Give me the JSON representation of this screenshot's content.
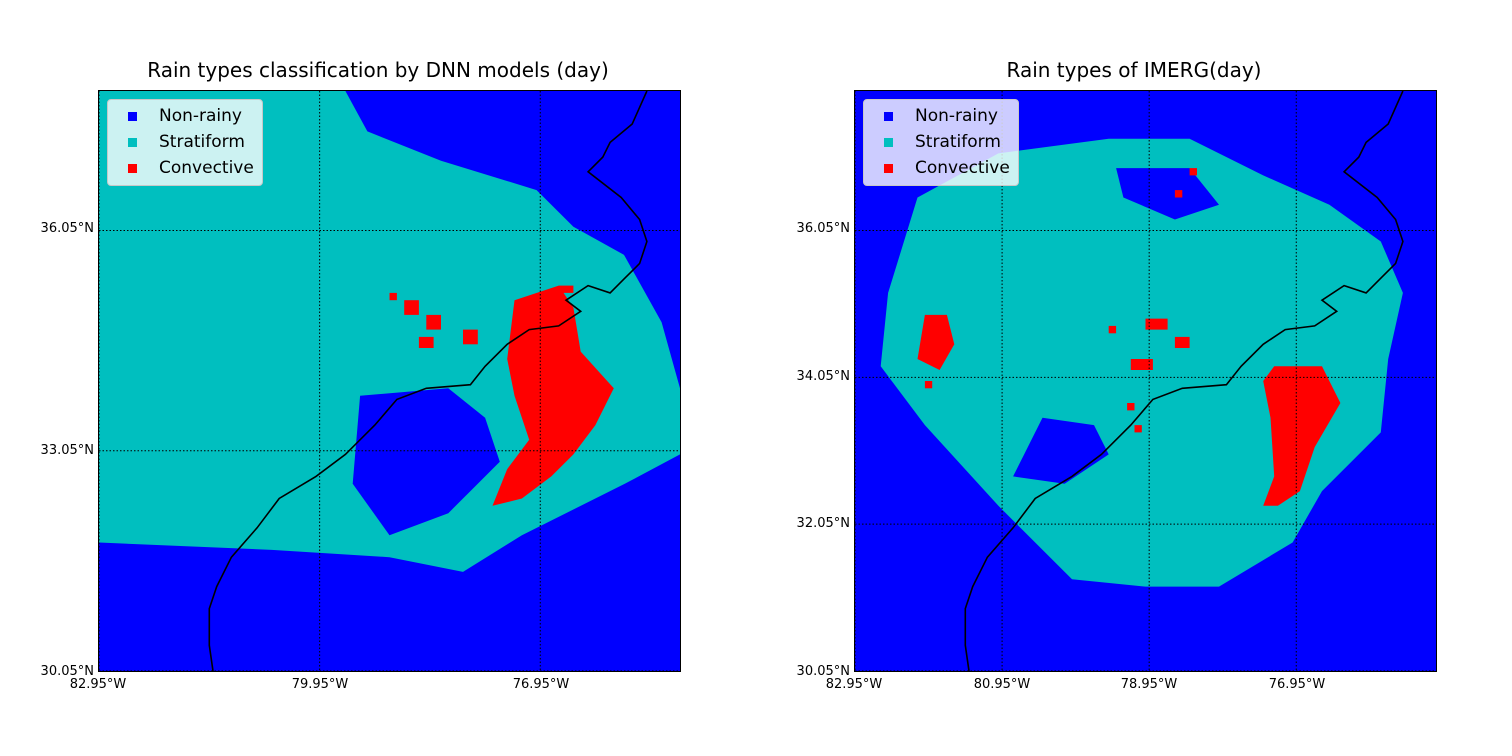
{
  "colors": {
    "non_rainy": "#0000ff",
    "stratiform": "#00bfbf",
    "convective": "#ff0000"
  },
  "legend": [
    "Non-rainy",
    "Stratiform",
    "Convective"
  ],
  "panels": [
    {
      "title": "Rain types classification by DNN models (day)",
      "xticks": [
        "82.95°W",
        "79.95°W",
        "76.95°W"
      ],
      "yticks": [
        "36.05°N",
        "33.05°N",
        "30.05°N"
      ]
    },
    {
      "title": "Rain types of IMERG(day)",
      "xticks": [
        "82.95°W",
        "80.95°W",
        "78.95°W",
        "76.95°W"
      ],
      "yticks": [
        "36.05°N",
        "34.05°N",
        "32.05°N",
        "30.05°N"
      ]
    }
  ],
  "chart_data": [
    {
      "type": "heatmap",
      "title": "Rain types classification by DNN models (day)",
      "categories": [
        "Non-rainy",
        "Stratiform",
        "Convective"
      ],
      "xlim": [
        -82.95,
        -75.05
      ],
      "ylim": [
        30.05,
        37.95
      ],
      "x_ticks": [
        -82.95,
        -79.95,
        -76.95
      ],
      "y_ticks": [
        30.05,
        33.05,
        36.05
      ],
      "stratiform_region": [
        [
          -82.95,
          37.95
        ],
        [
          -79.4,
          37.95
        ],
        [
          -78.3,
          37.5
        ],
        [
          -77.6,
          37.0
        ],
        [
          -76.4,
          36.7
        ],
        [
          -75.8,
          35.7
        ],
        [
          -75.3,
          34.8
        ],
        [
          -75.05,
          33.9
        ],
        [
          -75.05,
          33.0
        ],
        [
          -75.8,
          32.6
        ],
        [
          -77.2,
          31.9
        ],
        [
          -78.0,
          31.4
        ],
        [
          -79.0,
          31.6
        ],
        [
          -80.6,
          31.7
        ],
        [
          -82.95,
          31.8
        ]
      ],
      "non_rainy_holes": [
        [
          [
            -79.4,
            33.8
          ],
          [
            -78.2,
            33.9
          ],
          [
            -77.7,
            33.5
          ],
          [
            -77.5,
            32.9
          ],
          [
            -78.2,
            32.2
          ],
          [
            -79.0,
            31.9
          ],
          [
            -79.5,
            32.6
          ]
        ],
        [
          [
            -79.6,
            37.95
          ],
          [
            -75.05,
            37.95
          ],
          [
            -75.05,
            35.1
          ],
          [
            -75.6,
            35.6
          ],
          [
            -76.5,
            36.1
          ],
          [
            -77.0,
            36.6
          ],
          [
            -78.3,
            37.0
          ],
          [
            -79.3,
            37.4
          ]
        ]
      ],
      "convective_regions": [
        [
          [
            -77.3,
            35.1
          ],
          [
            -76.7,
            35.3
          ],
          [
            -76.5,
            35.0
          ],
          [
            -76.4,
            34.4
          ],
          [
            -75.95,
            33.9
          ],
          [
            -76.2,
            33.4
          ],
          [
            -76.5,
            33.0
          ],
          [
            -76.8,
            32.7
          ],
          [
            -77.2,
            32.4
          ],
          [
            -77.6,
            32.3
          ],
          [
            -77.4,
            32.8
          ],
          [
            -77.1,
            33.2
          ],
          [
            -77.3,
            33.8
          ],
          [
            -77.4,
            34.3
          ]
        ],
        [
          [
            -78.0,
            34.7
          ],
          [
            -77.8,
            34.7
          ],
          [
            -77.8,
            34.5
          ],
          [
            -78.0,
            34.5
          ]
        ],
        [
          [
            -78.5,
            34.9
          ],
          [
            -78.3,
            34.9
          ],
          [
            -78.3,
            34.7
          ],
          [
            -78.5,
            34.7
          ]
        ],
        [
          [
            -78.6,
            34.6
          ],
          [
            -78.4,
            34.6
          ],
          [
            -78.4,
            34.45
          ],
          [
            -78.6,
            34.45
          ]
        ],
        [
          [
            -79.0,
            35.2
          ],
          [
            -78.9,
            35.2
          ],
          [
            -78.9,
            35.1
          ],
          [
            -79.0,
            35.1
          ]
        ],
        [
          [
            -78.8,
            35.1
          ],
          [
            -78.6,
            35.1
          ],
          [
            -78.6,
            34.9
          ],
          [
            -78.8,
            34.9
          ]
        ],
        [
          [
            -76.7,
            35.3
          ],
          [
            -76.5,
            35.3
          ],
          [
            -76.5,
            35.2
          ],
          [
            -76.7,
            35.2
          ]
        ]
      ]
    },
    {
      "type": "heatmap",
      "title": "Rain types of IMERG(day)",
      "categories": [
        "Non-rainy",
        "Stratiform",
        "Convective"
      ],
      "xlim": [
        -82.95,
        -75.05
      ],
      "ylim": [
        30.05,
        37.95
      ],
      "x_ticks": [
        -82.95,
        -80.95,
        -78.95,
        -76.95
      ],
      "y_ticks": [
        30.05,
        32.05,
        34.05,
        36.05
      ],
      "stratiform_region": [
        [
          -82.1,
          36.5
        ],
        [
          -81.0,
          37.1
        ],
        [
          -79.5,
          37.3
        ],
        [
          -78.4,
          37.3
        ],
        [
          -77.4,
          36.8
        ],
        [
          -76.5,
          36.4
        ],
        [
          -75.8,
          35.9
        ],
        [
          -75.5,
          35.2
        ],
        [
          -75.7,
          34.3
        ],
        [
          -75.8,
          33.3
        ],
        [
          -76.6,
          32.5
        ],
        [
          -77.0,
          31.8
        ],
        [
          -78.0,
          31.2
        ],
        [
          -79.0,
          31.2
        ],
        [
          -80.0,
          31.3
        ],
        [
          -81.0,
          32.3
        ],
        [
          -82.0,
          33.4
        ],
        [
          -82.6,
          34.2
        ],
        [
          -82.5,
          35.2
        ]
      ],
      "non_rainy_holes": [
        [
          [
            -80.4,
            33.5
          ],
          [
            -79.7,
            33.4
          ],
          [
            -79.5,
            33.0
          ],
          [
            -80.1,
            32.6
          ],
          [
            -80.8,
            32.7
          ]
        ],
        [
          [
            -79.4,
            36.9
          ],
          [
            -78.4,
            36.9
          ],
          [
            -78.0,
            36.4
          ],
          [
            -78.6,
            36.2
          ],
          [
            -79.3,
            36.5
          ]
        ]
      ],
      "convective_regions": [
        [
          [
            -77.25,
            34.2
          ],
          [
            -76.6,
            34.2
          ],
          [
            -76.35,
            33.7
          ],
          [
            -76.7,
            33.1
          ],
          [
            -76.9,
            32.5
          ],
          [
            -77.2,
            32.3
          ],
          [
            -77.4,
            32.3
          ],
          [
            -77.25,
            32.7
          ],
          [
            -77.3,
            33.5
          ],
          [
            -77.4,
            34.0
          ]
        ],
        [
          [
            -82.0,
            34.9
          ],
          [
            -81.7,
            34.9
          ],
          [
            -81.6,
            34.5
          ],
          [
            -81.8,
            34.15
          ],
          [
            -82.1,
            34.3
          ]
        ],
        [
          [
            -79.0,
            34.85
          ],
          [
            -78.7,
            34.85
          ],
          [
            -78.7,
            34.7
          ],
          [
            -79.0,
            34.7
          ]
        ],
        [
          [
            -79.2,
            34.3
          ],
          [
            -78.9,
            34.3
          ],
          [
            -78.9,
            34.15
          ],
          [
            -79.2,
            34.15
          ]
        ],
        [
          [
            -78.6,
            34.6
          ],
          [
            -78.4,
            34.6
          ],
          [
            -78.4,
            34.45
          ],
          [
            -78.6,
            34.45
          ]
        ],
        [
          [
            -79.5,
            34.75
          ],
          [
            -79.4,
            34.75
          ],
          [
            -79.4,
            34.65
          ],
          [
            -79.5,
            34.65
          ]
        ],
        [
          [
            -78.4,
            36.9
          ],
          [
            -78.3,
            36.9
          ],
          [
            -78.3,
            36.8
          ],
          [
            -78.4,
            36.8
          ]
        ],
        [
          [
            -78.6,
            36.6
          ],
          [
            -78.5,
            36.6
          ],
          [
            -78.5,
            36.5
          ],
          [
            -78.6,
            36.5
          ]
        ],
        [
          [
            -79.25,
            33.7
          ],
          [
            -79.15,
            33.7
          ],
          [
            -79.15,
            33.6
          ],
          [
            -79.25,
            33.6
          ]
        ],
        [
          [
            -79.15,
            33.4
          ],
          [
            -79.05,
            33.4
          ],
          [
            -79.05,
            33.3
          ],
          [
            -79.15,
            33.3
          ]
        ],
        [
          [
            -82.0,
            34.0
          ],
          [
            -81.9,
            34.0
          ],
          [
            -81.9,
            33.9
          ],
          [
            -82.0,
            33.9
          ]
        ]
      ]
    }
  ],
  "coastline": [
    [
      -81.4,
      30.05
    ],
    [
      -81.45,
      30.4
    ],
    [
      -81.45,
      30.9
    ],
    [
      -81.35,
      31.2
    ],
    [
      -81.15,
      31.6
    ],
    [
      -80.8,
      32.0
    ],
    [
      -80.5,
      32.4
    ],
    [
      -80.0,
      32.7
    ],
    [
      -79.6,
      33.0
    ],
    [
      -79.2,
      33.4
    ],
    [
      -78.9,
      33.75
    ],
    [
      -78.5,
      33.9
    ],
    [
      -77.9,
      33.95
    ],
    [
      -77.7,
      34.2
    ],
    [
      -77.4,
      34.5
    ],
    [
      -77.1,
      34.7
    ],
    [
      -76.7,
      34.75
    ],
    [
      -76.4,
      34.95
    ],
    [
      -76.6,
      35.1
    ],
    [
      -76.3,
      35.3
    ],
    [
      -76.0,
      35.2
    ],
    [
      -75.8,
      35.4
    ],
    [
      -75.6,
      35.6
    ],
    [
      -75.5,
      35.9
    ],
    [
      -75.6,
      36.2
    ],
    [
      -75.85,
      36.5
    ],
    [
      -76.3,
      36.85
    ],
    [
      -76.1,
      37.05
    ],
    [
      -76.0,
      37.25
    ],
    [
      -75.7,
      37.5
    ],
    [
      -75.5,
      37.95
    ]
  ]
}
